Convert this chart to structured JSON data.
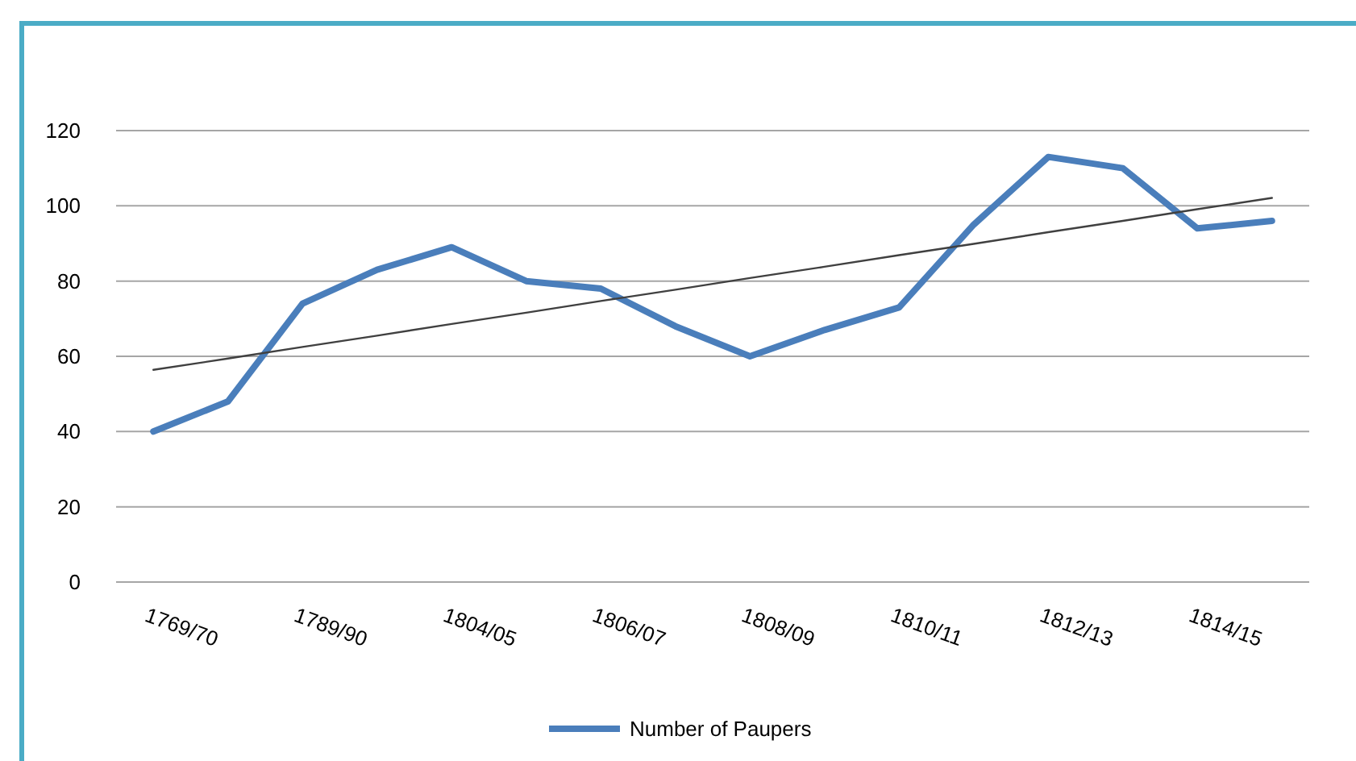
{
  "chart_data": {
    "type": "line",
    "categories": [
      "1769/70",
      null,
      "1789/90",
      null,
      "1804/05",
      null,
      "1806/07",
      null,
      "1808/09",
      null,
      "1810/11",
      null,
      "1812/13",
      null,
      "1814/15",
      null
    ],
    "series": [
      {
        "name": "Number of Paupers",
        "color": "#4a7ebb",
        "values": [
          40,
          48,
          74,
          83,
          89,
          80,
          78,
          68,
          60,
          67,
          73,
          95,
          113,
          110,
          94,
          96
        ]
      },
      {
        "type": "line",
        "color": "#404040",
        "values": [
          56.4,
          59.4,
          62.5,
          65.5,
          68.6,
          71.6,
          74.7,
          77.7,
          80.8,
          83.8,
          86.9,
          89.9,
          93.0,
          96.0,
          99.1,
          102.1
        ]
      }
    ],
    "ylim": [
      0,
      120
    ],
    "yticks": [
      0,
      20,
      40,
      60,
      80,
      100,
      120
    ],
    "grid": "y",
    "legend": "bottom",
    "marker": "none",
    "line_style": "solid"
  }
}
